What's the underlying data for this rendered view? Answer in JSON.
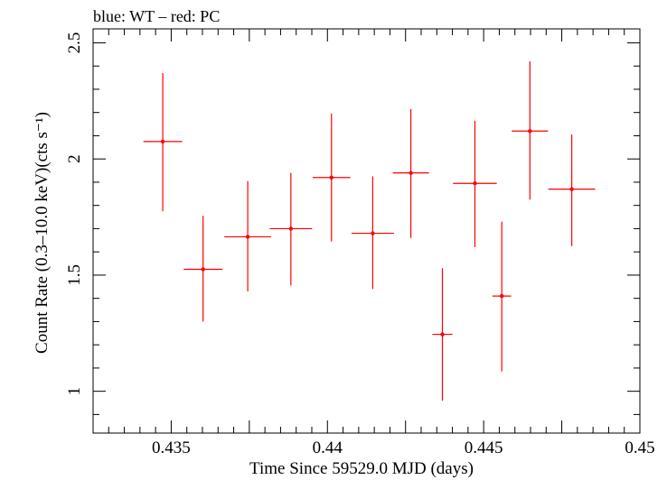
{
  "chart_data": {
    "type": "scatter",
    "title": "blue: WT – red: PC",
    "xlabel": "Time Since 59529.0 MJD (days)",
    "ylabel": "Count Rate (0.3–10.0 keV)(cts s⁻¹)",
    "xlim": [
      0.4325,
      0.45
    ],
    "ylim": [
      0.82,
      2.56
    ],
    "x_ticks": [
      {
        "value": 0.435,
        "label": "0.435"
      },
      {
        "value": 0.44,
        "label": "0.44"
      },
      {
        "value": 0.445,
        "label": "0.445"
      },
      {
        "value": 0.45,
        "label": "0.45"
      }
    ],
    "y_ticks": [
      {
        "value": 1,
        "label": "1"
      },
      {
        "value": 1.5,
        "label": "1.5"
      },
      {
        "value": 2,
        "label": "2"
      },
      {
        "value": 2.5,
        "label": "2.5"
      }
    ],
    "grid": false,
    "series": [
      {
        "name": "PC",
        "color": "#ff0000",
        "points": [
          {
            "x": 0.43473,
            "y": 2.075,
            "xerr": 0.00062,
            "ylo": 1.775,
            "yhi": 2.37
          },
          {
            "x": 0.43602,
            "y": 1.525,
            "xerr": 0.00062,
            "ylo": 1.3,
            "yhi": 1.755
          },
          {
            "x": 0.43745,
            "y": 1.665,
            "xerr": 0.00075,
            "ylo": 1.43,
            "yhi": 1.905
          },
          {
            "x": 0.43883,
            "y": 1.7,
            "xerr": 0.00068,
            "ylo": 1.455,
            "yhi": 1.94
          },
          {
            "x": 0.44013,
            "y": 1.92,
            "xerr": 0.0006,
            "ylo": 1.645,
            "yhi": 2.195
          },
          {
            "x": 0.44145,
            "y": 1.68,
            "xerr": 0.00068,
            "ylo": 1.44,
            "yhi": 1.925
          },
          {
            "x": 0.44267,
            "y": 1.94,
            "xerr": 0.00058,
            "ylo": 1.66,
            "yhi": 2.215
          },
          {
            "x": 0.44368,
            "y": 1.245,
            "xerr": 0.00032,
            "ylo": 0.96,
            "yhi": 1.53
          },
          {
            "x": 0.44472,
            "y": 1.895,
            "xerr": 0.0007,
            "ylo": 1.62,
            "yhi": 2.165
          },
          {
            "x": 0.44558,
            "y": 1.41,
            "xerr": 0.0003,
            "ylo": 1.085,
            "yhi": 1.73
          },
          {
            "x": 0.44648,
            "y": 2.12,
            "xerr": 0.00058,
            "ylo": 1.825,
            "yhi": 2.42
          },
          {
            "x": 0.44782,
            "y": 1.87,
            "xerr": 0.00075,
            "ylo": 1.625,
            "yhi": 2.105
          }
        ]
      }
    ]
  }
}
